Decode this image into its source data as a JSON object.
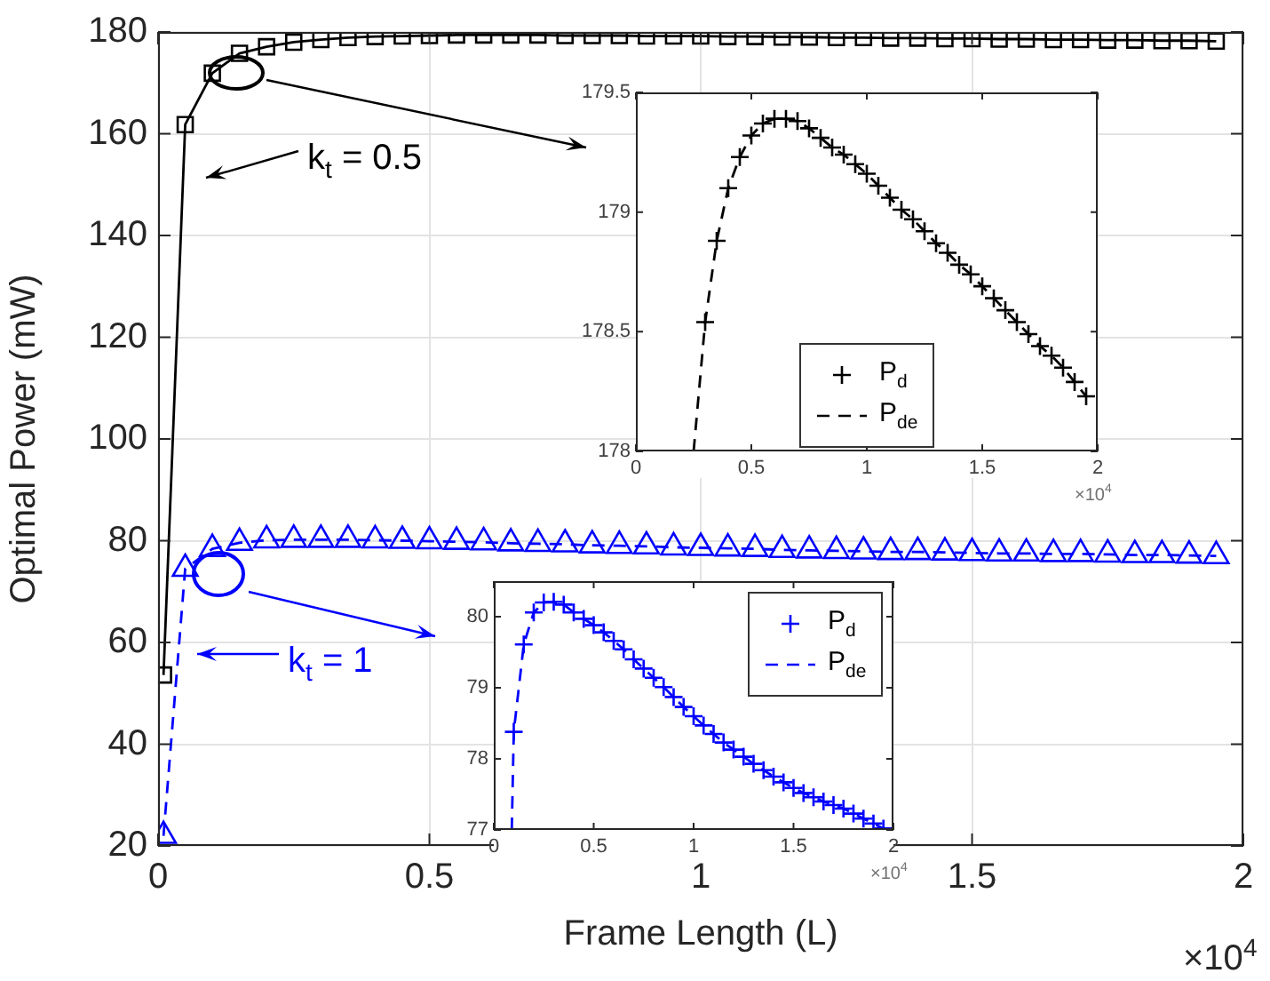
{
  "chart_data": [
    {
      "type": "line",
      "xlabel": "Frame Length (L)",
      "ylabel": "Optimal Power (mW)",
      "x": [
        0.01,
        0.05,
        0.1,
        0.15,
        0.2,
        0.25,
        0.3,
        0.35,
        0.4,
        0.45,
        0.5,
        0.55,
        0.6,
        0.65,
        0.7,
        0.75,
        0.8,
        0.85,
        0.9,
        0.95,
        1,
        1.05,
        1.1,
        1.15,
        1.2,
        1.25,
        1.3,
        1.35,
        1.4,
        1.45,
        1.5,
        1.55,
        1.6,
        1.65,
        1.7,
        1.75,
        1.8,
        1.85,
        1.9,
        1.95
      ],
      "series": [
        {
          "color": "#000000",
          "marker": "square",
          "line_style": "solid",
          "values": [
            53.6,
            161.8,
            171.9,
            175.8,
            177.1,
            178.0,
            178.5,
            178.9,
            179.1,
            179.2,
            179.3,
            179.4,
            179.4,
            179.4,
            179.4,
            179.3,
            179.3,
            179.3,
            179.2,
            179.2,
            179.2,
            179.1,
            179.1,
            179.0,
            179.0,
            178.9,
            178.9,
            178.8,
            178.8,
            178.7,
            178.7,
            178.6,
            178.6,
            178.5,
            178.5,
            178.4,
            178.4,
            178.3,
            178.3,
            178.2
          ]
        },
        {
          "color": "#0000ff",
          "marker": "triangle",
          "line_style": "dashed",
          "values": [
            22.0,
            74.5,
            78.4,
            79.6,
            80.1,
            80.2,
            80.2,
            80.2,
            80.1,
            80.0,
            79.9,
            79.8,
            79.7,
            79.5,
            79.4,
            79.3,
            79.1,
            79.0,
            78.9,
            78.7,
            78.6,
            78.5,
            78.4,
            78.2,
            78.1,
            78.0,
            77.9,
            77.8,
            77.8,
            77.7,
            77.6,
            77.5,
            77.5,
            77.4,
            77.4,
            77.3,
            77.2,
            77.2,
            77.1,
            77.0
          ]
        }
      ],
      "xlim": [
        0,
        2
      ],
      "xticks": [
        0,
        0.5,
        1,
        1.5,
        2
      ],
      "ylim": [
        20,
        180
      ],
      "yticks": [
        20,
        40,
        60,
        80,
        100,
        120,
        140,
        160,
        180
      ],
      "grid": true,
      "legend": false,
      "annotations": [
        "k$_{t}$ = 0.5",
        "k$_{t}$ = 1",
        "×10$^{4}$"
      ]
    },
    {
      "type": "line",
      "x": [
        0.3,
        0.35,
        0.4,
        0.45,
        0.5,
        0.55,
        0.6,
        0.65,
        0.7,
        0.75,
        0.8,
        0.85,
        0.9,
        0.95,
        1,
        1.05,
        1.1,
        1.15,
        1.2,
        1.25,
        1.3,
        1.35,
        1.4,
        1.45,
        1.5,
        1.55,
        1.6,
        1.65,
        1.7,
        1.75,
        1.8,
        1.85,
        1.9,
        1.95
      ],
      "series": [
        {
          "name": "P$_{d}$",
          "type": "scatter",
          "color": "#000000",
          "marker": "cross",
          "values": [
            178.54,
            178.88,
            179.1,
            179.23,
            179.32,
            179.37,
            179.39,
            179.39,
            179.38,
            179.35,
            179.31,
            179.27,
            179.24,
            179.2,
            179.16,
            179.11,
            179.06,
            179.01,
            178.97,
            178.92,
            178.87,
            178.83,
            178.78,
            178.74,
            178.69,
            178.64,
            178.59,
            178.54,
            178.49,
            178.44,
            178.4,
            178.35,
            178.29,
            178.23
          ]
        },
        {
          "name": "P$_{de}$",
          "color": "#000000",
          "marker": "none",
          "line_style": "dashed",
          "x": [
            0.25,
            0.3,
            0.35,
            0.4,
            0.45,
            0.5,
            0.55,
            0.6,
            0.65,
            0.7,
            0.75,
            0.8,
            0.85,
            0.9,
            0.95,
            1,
            1.05,
            1.1,
            1.15,
            1.2,
            1.25,
            1.3,
            1.35,
            1.4,
            1.45,
            1.5,
            1.55,
            1.6,
            1.65,
            1.7,
            1.75,
            1.8,
            1.85,
            1.9,
            1.95
          ],
          "values": [
            178.0,
            178.54,
            178.88,
            179.1,
            179.23,
            179.32,
            179.37,
            179.39,
            179.39,
            179.38,
            179.35,
            179.31,
            179.27,
            179.24,
            179.2,
            179.16,
            179.11,
            179.06,
            179.01,
            178.97,
            178.92,
            178.87,
            178.83,
            178.78,
            178.74,
            178.69,
            178.64,
            178.59,
            178.54,
            178.49,
            178.44,
            178.4,
            178.35,
            178.29,
            178.23
          ]
        }
      ],
      "xlim": [
        0,
        2
      ],
      "xticks": [
        0,
        0.5,
        1,
        1.5,
        2
      ],
      "ylim": [
        178,
        179.5
      ],
      "yticks": [
        178,
        178.5,
        179,
        179.5
      ],
      "legend": "bottom",
      "annotations": [
        "×10$^{4}$"
      ]
    },
    {
      "type": "line",
      "x": [
        0.1,
        0.15,
        0.2,
        0.25,
        0.3,
        0.35,
        0.4,
        0.45,
        0.5,
        0.55,
        0.6,
        0.65,
        0.7,
        0.75,
        0.8,
        0.85,
        0.9,
        0.95,
        1,
        1.05,
        1.1,
        1.15,
        1.2,
        1.25,
        1.3,
        1.35,
        1.4,
        1.45,
        1.5,
        1.55,
        1.6,
        1.65,
        1.7,
        1.75,
        1.8,
        1.85,
        1.9,
        1.95
      ],
      "series": [
        {
          "name": "P$_{d}$",
          "type": "scatter",
          "color": "#0000ff",
          "marker": "cross",
          "values": [
            78.38,
            79.61,
            80.06,
            80.2,
            80.21,
            80.17,
            80.06,
            79.97,
            79.88,
            79.78,
            79.66,
            79.54,
            79.4,
            79.27,
            79.14,
            79.01,
            78.87,
            78.73,
            78.6,
            78.47,
            78.35,
            78.23,
            78.13,
            78.03,
            77.93,
            77.84,
            77.75,
            77.67,
            77.59,
            77.52,
            77.46,
            77.4,
            77.35,
            77.3,
            77.23,
            77.16,
            77.09,
            77.02
          ]
        },
        {
          "name": "P$_{de}$",
          "color": "#0000ff",
          "marker": "none",
          "line_style": "dashed",
          "x": [
            0.09,
            0.1,
            0.15,
            0.2,
            0.25,
            0.3,
            0.35,
            0.4,
            0.45,
            0.5,
            0.55,
            0.6,
            0.65,
            0.7,
            0.75,
            0.8,
            0.85,
            0.9,
            0.95,
            1,
            1.05,
            1.1,
            1.15,
            1.2,
            1.25,
            1.3,
            1.35,
            1.4,
            1.45,
            1.5,
            1.55,
            1.6,
            1.65,
            1.7,
            1.75,
            1.8,
            1.85,
            1.9,
            1.95
          ],
          "values": [
            77.0,
            78.38,
            79.61,
            80.06,
            80.2,
            80.21,
            80.17,
            80.06,
            79.97,
            79.88,
            79.78,
            79.66,
            79.54,
            79.4,
            79.27,
            79.14,
            79.01,
            78.87,
            78.73,
            78.6,
            78.47,
            78.35,
            78.23,
            78.13,
            78.03,
            77.93,
            77.84,
            77.75,
            77.67,
            77.59,
            77.52,
            77.46,
            77.4,
            77.35,
            77.3,
            77.23,
            77.16,
            77.09,
            77.02
          ]
        }
      ],
      "xlim": [
        0,
        2
      ],
      "xticks": [
        0,
        0.5,
        1,
        1.5,
        2
      ],
      "ylim": [
        77,
        80.5
      ],
      "yticks": [
        77,
        78,
        79,
        80
      ],
      "legend": "top right",
      "annotations": [
        "×10$^{4}$"
      ]
    }
  ]
}
